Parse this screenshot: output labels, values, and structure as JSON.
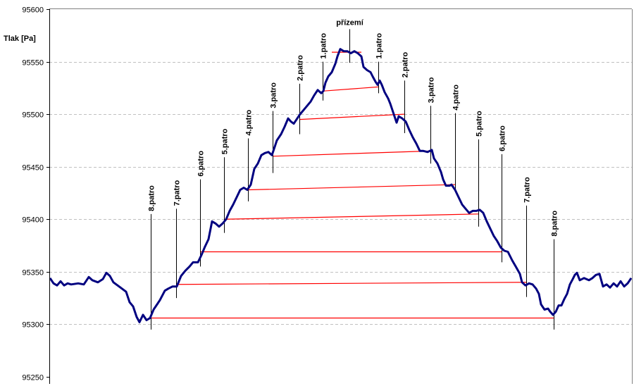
{
  "chart_data": {
    "type": "line",
    "title": "",
    "xlabel": "",
    "ylabel": "Tlak [Pa]",
    "ylim": [
      95250,
      95600
    ],
    "xlim": [
      0,
      826
    ],
    "yticks": [
      95250,
      95300,
      95350,
      95400,
      95450,
      95500,
      95550,
      95600
    ],
    "grid": true,
    "colors": {
      "series": "#000080",
      "floor_line": "#ff0000",
      "grid": "#c0c0c0",
      "marker": "#000000"
    },
    "series": [
      {
        "name": "Tlak",
        "x": [
          0,
          5,
          10,
          15,
          20,
          25,
          30,
          40,
          48,
          55,
          60,
          68,
          75,
          80,
          85,
          90,
          100,
          108,
          113,
          118,
          123,
          127,
          132,
          137,
          142,
          147,
          152,
          156,
          163,
          168,
          174,
          180,
          186,
          192,
          198,
          203,
          210,
          215,
          220,
          225,
          230,
          235,
          240,
          245,
          250,
          255,
          260,
          265,
          270,
          275,
          280,
          285,
          290,
          295,
          300,
          305,
          310,
          315,
          318,
          322,
          328,
          333,
          338,
          342,
          346,
          350,
          355,
          360,
          365,
          370,
          375,
          380,
          385,
          388,
          391,
          395,
          400,
          405,
          408,
          412,
          417,
          422,
          427,
          432,
          437,
          442,
          445,
          450,
          455,
          458,
          462,
          465,
          468,
          471,
          475,
          480,
          483,
          487,
          492,
          495,
          500,
          505,
          510,
          515,
          520,
          525,
          530,
          536,
          542,
          545,
          550,
          555,
          558,
          562,
          567,
          570,
          575,
          580,
          585,
          590,
          595,
          600,
          605,
          610,
          615,
          620,
          625,
          630,
          635,
          640,
          645,
          650,
          656,
          662,
          667,
          670,
          675,
          680,
          685,
          690,
          694,
          697,
          702,
          707,
          710,
          714,
          718,
          722,
          726,
          730,
          734,
          738,
          742,
          745,
          748,
          752,
          758,
          765,
          770,
          775,
          780,
          785,
          790,
          795,
          800,
          805,
          810,
          815,
          820,
          825
        ],
        "y": [
          95344,
          95339,
          95337,
          95341,
          95337,
          95339,
          95338,
          95339,
          95338,
          95345,
          95342,
          95340,
          95343,
          95349,
          95346,
          95340,
          95335,
          95331,
          95321,
          95317,
          95307,
          95302,
          95309,
          95304,
          95306,
          95314,
          95319,
          95323,
          95332,
          95334,
          95336,
          95336,
          95346,
          95351,
          95355,
          95359,
          95359,
          95366,
          95374,
          95381,
          95398,
          95396,
          95393,
          95396,
          95400,
          95408,
          95414,
          95421,
          95428,
          95430,
          95428,
          95433,
          95448,
          95453,
          95461,
          95463,
          95464,
          95461,
          95467,
          95475,
          95481,
          95488,
          95496,
          95493,
          95491,
          95495,
          95500,
          95504,
          95508,
          95512,
          95518,
          95523,
          95520,
          95522,
          95530,
          95536,
          95540,
          95548,
          95555,
          95562,
          95560,
          95560,
          95558,
          95560,
          95558,
          95555,
          95545,
          95542,
          95540,
          95536,
          95531,
          95528,
          95532,
          95528,
          95521,
          95515,
          95510,
          95502,
          95492,
          95498,
          95496,
          95493,
          95485,
          95478,
          95472,
          95465,
          95465,
          95464,
          95466,
          95458,
          95453,
          95445,
          95438,
          95432,
          95432,
          95433,
          95428,
          95421,
          95414,
          95410,
          95406,
          95408,
          95408,
          95409,
          95406,
          95398,
          95391,
          95384,
          95379,
          95373,
          95370,
          95369,
          95361,
          95354,
          95348,
          95340,
          95337,
          95339,
          95338,
          95334,
          95329,
          95319,
          95314,
          95315,
          95312,
          95309,
          95312,
          95318,
          95318,
          95324,
          95329,
          95338,
          95343,
          95347,
          95349,
          95342,
          95344,
          95342,
          95344,
          95347,
          95348,
          95336,
          95338,
          95335,
          95339,
          95336,
          95341,
          95336,
          95339,
          95344
        ]
      }
    ],
    "floor_levels": [
      {
        "floor": "1.patro",
        "left_x": 387,
        "right_x": 466,
        "left_p": 95522,
        "right_p": 95526
      },
      {
        "floor": "2.patro",
        "left_x": 354,
        "right_x": 503,
        "left_p": 95495,
        "right_p": 95500
      },
      {
        "floor": "3.patro",
        "left_x": 316,
        "right_x": 540,
        "left_p": 95460,
        "right_p": 95465
      },
      {
        "floor": "4.patro",
        "left_x": 281,
        "right_x": 575,
        "left_p": 95428,
        "right_p": 95433
      },
      {
        "floor": "5.patro",
        "left_x": 247,
        "right_x": 608,
        "left_p": 95400,
        "right_p": 95405
      },
      {
        "floor": "6.patro",
        "left_x": 213,
        "right_x": 641,
        "left_p": 95369,
        "right_p": 95369
      },
      {
        "floor": "7.patro",
        "left_x": 179,
        "right_x": 676,
        "left_p": 95338,
        "right_p": 95340
      },
      {
        "floor": "8.patro",
        "left_x": 143,
        "right_x": 715,
        "left_p": 95306,
        "right_p": 95306
      }
    ],
    "annotations": [
      {
        "text": "8.patro",
        "x": 143,
        "top_p": 95405,
        "bottom_p": 95295
      },
      {
        "text": "7.patro",
        "x": 179,
        "top_p": 95410,
        "bottom_p": 95325
      },
      {
        "text": "6.patro",
        "x": 213,
        "top_p": 95438,
        "bottom_p": 95355
      },
      {
        "text": "5.patro",
        "x": 247,
        "top_p": 95459,
        "bottom_p": 95387
      },
      {
        "text": "4.patro",
        "x": 281,
        "top_p": 95477,
        "bottom_p": 95417
      },
      {
        "text": "3.patro",
        "x": 316,
        "top_p": 95503,
        "bottom_p": 95444
      },
      {
        "text": "2.patro",
        "x": 354,
        "top_p": 95529,
        "bottom_p": 95481
      },
      {
        "text": "1.patro",
        "x": 387,
        "top_p": 95550,
        "bottom_p": 95513
      },
      {
        "text": "přízemí",
        "x": 425,
        "top_p": 95581,
        "bottom_p": 95549,
        "horizontal": true,
        "level_p": 95559,
        "level_from": 400,
        "level_to": 442
      },
      {
        "text": "1.patro",
        "x": 466,
        "top_p": 95550,
        "bottom_p": 95520
      },
      {
        "text": "2.patro",
        "x": 503,
        "top_p": 95532,
        "bottom_p": 95482
      },
      {
        "text": "3.patro",
        "x": 540,
        "top_p": 95508,
        "bottom_p": 95453
      },
      {
        "text": "4.patro",
        "x": 575,
        "top_p": 95501,
        "bottom_p": 95429
      },
      {
        "text": "5.patro",
        "x": 608,
        "top_p": 95476,
        "bottom_p": 95393
      },
      {
        "text": "6.patro",
        "x": 641,
        "top_p": 95462,
        "bottom_p": 95359
      },
      {
        "text": "7.patro",
        "x": 676,
        "top_p": 95413,
        "bottom_p": 95326
      },
      {
        "text": "8.patro",
        "x": 715,
        "top_p": 95381,
        "bottom_p": 95295
      }
    ]
  }
}
